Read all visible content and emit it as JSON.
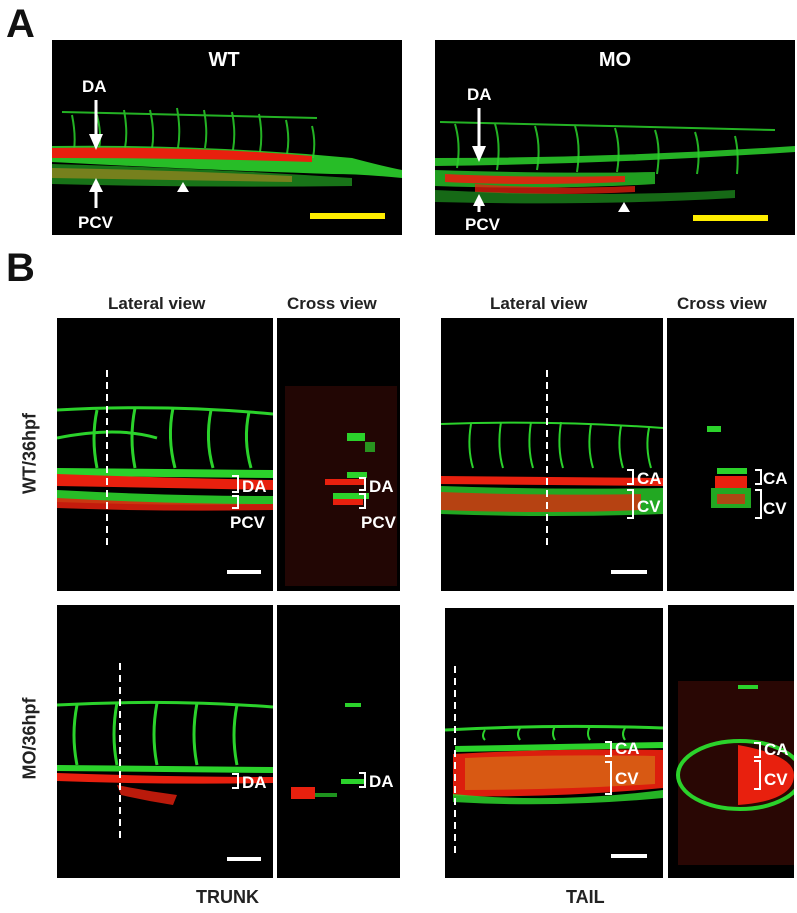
{
  "panel_labels": {
    "a": "A",
    "b": "B"
  },
  "panel_a": {
    "wt": {
      "title": "WT",
      "labels": [
        "DA",
        "PCV"
      ]
    },
    "mo": {
      "title": "MO",
      "labels": [
        "DA",
        "PCV"
      ]
    }
  },
  "panel_b": {
    "column_headers": [
      "Lateral view",
      "Cross view",
      "Lateral view",
      "Cross view"
    ],
    "row_headers": [
      "WT/36hpf",
      "MO/36hpf"
    ],
    "footer": {
      "trunk": "TRUNK",
      "tail": "TAIL"
    },
    "vessel_labels": {
      "wt_trunk": [
        "DA",
        "PCV"
      ],
      "wt_trunk_cross": [
        "DA",
        "PCV"
      ],
      "wt_tail": [
        "CA",
        "CV"
      ],
      "wt_tail_cross": [
        "CA",
        "CV"
      ],
      "mo_trunk": [
        "DA"
      ],
      "mo_trunk_cross": [
        "DA"
      ],
      "mo_tail": [
        "CA",
        "CV"
      ],
      "mo_tail_cross": [
        "CA",
        "CV"
      ]
    }
  },
  "colors": {
    "vessel_green": "#2bd22b",
    "blood_red": "#e8200e",
    "scale_bar_yellow": "#ffee00",
    "background": "#000000"
  }
}
